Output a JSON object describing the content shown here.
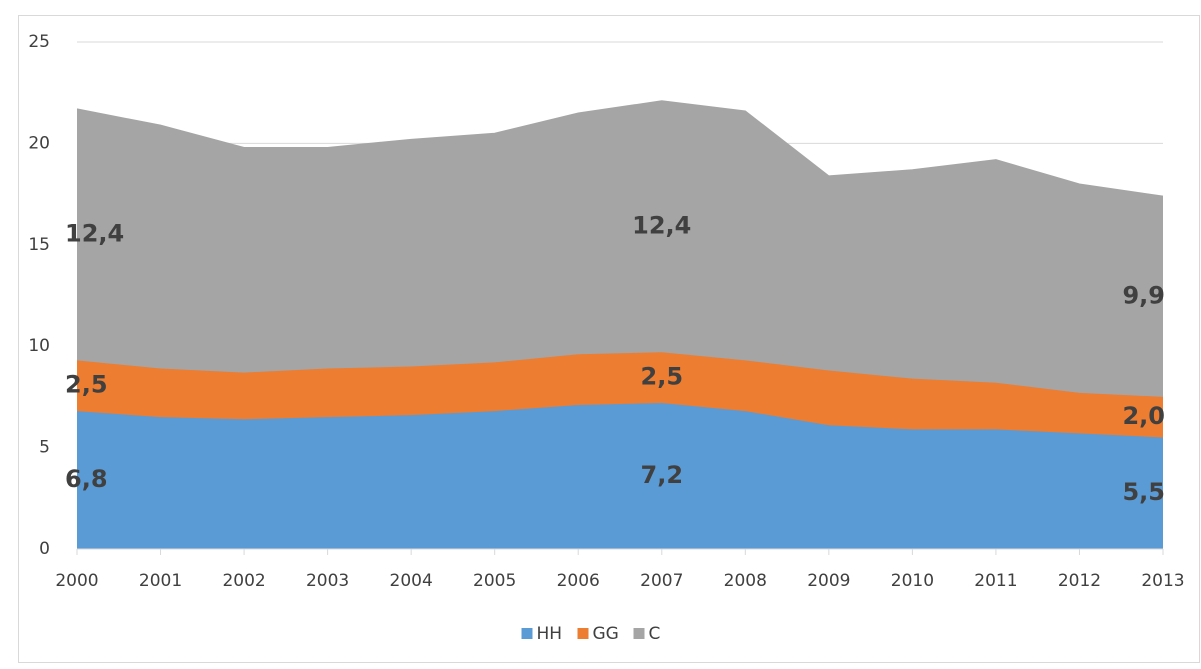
{
  "chart_data": {
    "type": "stacked-area",
    "categories": [
      "2000",
      "2001",
      "2002",
      "2003",
      "2004",
      "2005",
      "2006",
      "2007",
      "2008",
      "2009",
      "2010",
      "2011",
      "2012",
      "2013"
    ],
    "series": [
      {
        "name": "HH",
        "color": "#5b9bd5",
        "values": [
          6.8,
          6.5,
          6.4,
          6.5,
          6.6,
          6.8,
          7.1,
          7.2,
          6.8,
          6.1,
          5.9,
          5.9,
          5.7,
          5.5
        ],
        "value_labels": [
          "6,8",
          null,
          null,
          null,
          null,
          null,
          null,
          "7,2",
          null,
          null,
          null,
          null,
          null,
          "5,5"
        ]
      },
      {
        "name": "GG",
        "color": "#ed7d31",
        "values": [
          2.5,
          2.4,
          2.3,
          2.4,
          2.4,
          2.4,
          2.5,
          2.5,
          2.5,
          2.7,
          2.5,
          2.3,
          2.0,
          2.0
        ],
        "value_labels": [
          "2,5",
          null,
          null,
          null,
          null,
          null,
          null,
          "2,5",
          null,
          null,
          null,
          null,
          null,
          "2,0"
        ]
      },
      {
        "name": "C",
        "color": "#a5a5a5",
        "values": [
          12.4,
          12.0,
          11.1,
          10.9,
          11.2,
          11.3,
          11.9,
          12.4,
          12.3,
          9.6,
          10.3,
          11.0,
          10.3,
          9.9
        ],
        "value_labels": [
          "12,4",
          null,
          null,
          null,
          null,
          null,
          null,
          "12,4",
          null,
          null,
          null,
          null,
          null,
          "9,9"
        ]
      }
    ],
    "ylim": [
      0,
      25
    ],
    "yticks": [
      0,
      5,
      10,
      15,
      20,
      25
    ],
    "grid": true,
    "legend": "bottom"
  }
}
